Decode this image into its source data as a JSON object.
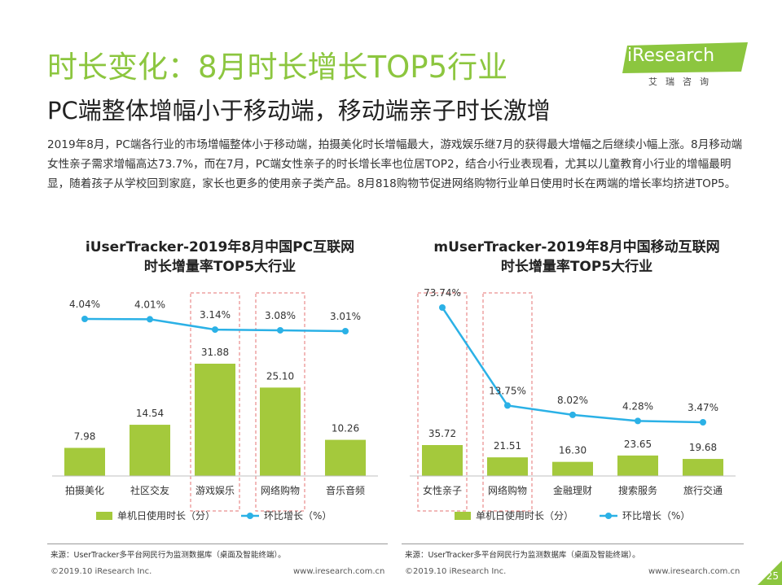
{
  "header": {
    "title": "时长变化：8月时长增长TOP5行业",
    "subtitle": "PC端整体增幅小于移动端，移动端亲子时长激增",
    "summary": "2019年8月，PC端各行业的市场增幅整体小于移动端，拍摄美化时长增幅最大，游戏娱乐继7月的获得最大增幅之后继续小幅上涨。8月移动端女性亲子需求增幅高达73.7%，而在7月，PC端女性亲子的时长增长率也位居TOP2，结合小行业表现看，尤其以儿童教育小行业的增幅最明显，随着孩子从学校回到家庭，家长也更多的使用亲子类产品。8月818购物节促进网络购物行业单日使用时长在两端的增长率均挤进TOP5。"
  },
  "logo": {
    "word": "iResearch",
    "cn": "艾瑞咨询"
  },
  "colors": {
    "accent": "#8cc63f",
    "bar": "#a4c93c",
    "line": "#2bb1e6",
    "highlight_border": "#e57373"
  },
  "chart_data": [
    {
      "type": "bar",
      "title_line1": "iUserTracker-2019年8月中国PC互联网",
      "title_line2": "时长增量率TOP5大行业",
      "categories": [
        "拍摄美化",
        "社区交友",
        "游戏娱乐",
        "网络购物",
        "音乐音频"
      ],
      "series": [
        {
          "name": "单机日使用时长（分）",
          "kind": "bar",
          "values": [
            7.98,
            14.54,
            31.88,
            25.1,
            10.26
          ],
          "labels": [
            "7.98",
            "14.54",
            "31.88",
            "25.10",
            "10.26"
          ]
        },
        {
          "name": "环比增长（%）",
          "kind": "line",
          "values": [
            4.04,
            4.01,
            3.14,
            3.08,
            3.01
          ],
          "labels": [
            "4.04%",
            "4.01%",
            "3.14%",
            "3.08%",
            "3.01%"
          ]
        }
      ],
      "highlighted": [
        "游戏娱乐",
        "网络购物"
      ],
      "legend_position": "bottom",
      "source": "来源：UserTracker多平台网民行为监测数据库（桌面及智能终端）。",
      "footer_left": "©2019.10 iResearch Inc.",
      "footer_right": "www.iresearch.com.cn"
    },
    {
      "type": "bar",
      "title_line1": "mUserTracker-2019年8月中国移动互联网",
      "title_line2": "时长增量率TOP5大行业",
      "categories": [
        "女性亲子",
        "网络购物",
        "金融理财",
        "搜索服务",
        "旅行交通"
      ],
      "series": [
        {
          "name": "单机日使用时长（分）",
          "kind": "bar",
          "values": [
            35.72,
            21.51,
            16.3,
            23.65,
            19.68
          ],
          "labels": [
            "35.72",
            "21.51",
            "16.30",
            "23.65",
            "19.68"
          ]
        },
        {
          "name": "环比增长（%）",
          "kind": "line",
          "values": [
            73.74,
            13.75,
            8.02,
            4.28,
            3.47
          ],
          "labels": [
            "73.74%",
            "13.75%",
            "8.02%",
            "4.28%",
            "3.47%"
          ]
        }
      ],
      "highlighted": [
        "女性亲子",
        "网络购物"
      ],
      "legend_position": "bottom",
      "source": "来源：UserTracker多平台网民行为监测数据库（桌面及智能终端）。",
      "footer_left": "©2019.10 iResearch Inc.",
      "footer_right": "www.iresearch.com.cn"
    }
  ],
  "page_number": "25"
}
